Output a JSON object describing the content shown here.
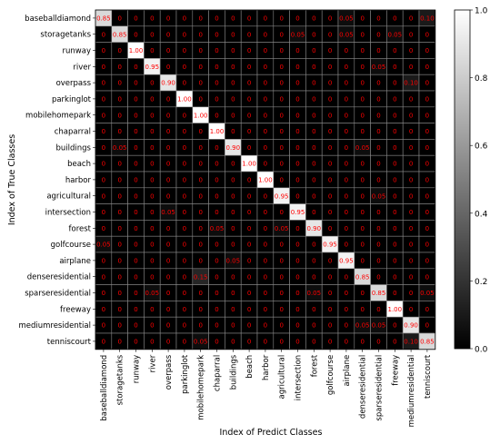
{
  "chart_data": {
    "type": "heatmap",
    "xlabel": "Index of Predict Classes",
    "ylabel": "Index of True Classes",
    "classes": [
      "baseballdiamond",
      "storagetanks",
      "runway",
      "river",
      "overpass",
      "parkinglot",
      "mobilehomepark",
      "chaparral",
      "buildings",
      "beach",
      "harbor",
      "agricultural",
      "intersection",
      "forest",
      "golfcourse",
      "airplane",
      "denseresidential",
      "sparseresidential",
      "freeway",
      "mediumresidential",
      "tenniscourt"
    ],
    "matrix": [
      [
        0.85,
        0,
        0,
        0,
        0,
        0,
        0,
        0,
        0,
        0,
        0,
        0,
        0,
        0,
        0,
        0.05,
        0,
        0,
        0,
        0,
        0.1
      ],
      [
        0,
        0.85,
        0,
        0,
        0,
        0,
        0,
        0,
        0,
        0,
        0,
        0,
        0.05,
        0,
        0,
        0.05,
        0,
        0,
        0.05,
        0,
        0
      ],
      [
        0,
        0,
        1.0,
        0,
        0,
        0,
        0,
        0,
        0,
        0,
        0,
        0,
        0,
        0,
        0,
        0,
        0,
        0,
        0,
        0,
        0
      ],
      [
        0,
        0,
        0,
        0.95,
        0,
        0,
        0,
        0,
        0,
        0,
        0,
        0,
        0,
        0,
        0,
        0,
        0,
        0.05,
        0,
        0,
        0
      ],
      [
        0,
        0,
        0,
        0,
        0.9,
        0,
        0,
        0,
        0,
        0,
        0,
        0,
        0,
        0,
        0,
        0,
        0,
        0,
        0,
        0.1,
        0
      ],
      [
        0,
        0,
        0,
        0,
        0,
        1.0,
        0,
        0,
        0,
        0,
        0,
        0,
        0,
        0,
        0,
        0,
        0,
        0,
        0,
        0,
        0
      ],
      [
        0,
        0,
        0,
        0,
        0,
        0,
        1.0,
        0,
        0,
        0,
        0,
        0,
        0,
        0,
        0,
        0,
        0,
        0,
        0,
        0,
        0
      ],
      [
        0,
        0,
        0,
        0,
        0,
        0,
        0,
        1.0,
        0,
        0,
        0,
        0,
        0,
        0,
        0,
        0,
        0,
        0,
        0,
        0,
        0
      ],
      [
        0,
        0.05,
        0,
        0,
        0,
        0,
        0,
        0,
        0.9,
        0,
        0,
        0,
        0,
        0,
        0,
        0,
        0.05,
        0,
        0,
        0,
        0
      ],
      [
        0,
        0,
        0,
        0,
        0,
        0,
        0,
        0,
        0,
        1.0,
        0,
        0,
        0,
        0,
        0,
        0,
        0,
        0,
        0,
        0,
        0
      ],
      [
        0,
        0,
        0,
        0,
        0,
        0,
        0,
        0,
        0,
        0,
        1.0,
        0,
        0,
        0,
        0,
        0,
        0,
        0,
        0,
        0,
        0
      ],
      [
        0,
        0,
        0,
        0,
        0,
        0,
        0,
        0,
        0,
        0,
        0,
        0.95,
        0,
        0,
        0,
        0,
        0,
        0.05,
        0,
        0,
        0
      ],
      [
        0,
        0,
        0,
        0,
        0.05,
        0,
        0,
        0,
        0,
        0,
        0,
        0,
        0.95,
        0,
        0,
        0,
        0,
        0,
        0,
        0,
        0
      ],
      [
        0,
        0,
        0,
        0,
        0,
        0,
        0,
        0.05,
        0,
        0,
        0,
        0.05,
        0,
        0.9,
        0,
        0,
        0,
        0,
        0,
        0,
        0
      ],
      [
        0.05,
        0,
        0,
        0,
        0,
        0,
        0,
        0,
        0,
        0,
        0,
        0,
        0,
        0,
        0.95,
        0,
        0,
        0,
        0,
        0,
        0
      ],
      [
        0,
        0,
        0,
        0,
        0,
        0,
        0,
        0,
        0.05,
        0,
        0,
        0,
        0,
        0,
        0,
        0.95,
        0,
        0,
        0,
        0,
        0
      ],
      [
        0,
        0,
        0,
        0,
        0,
        0,
        0.15,
        0,
        0,
        0,
        0,
        0,
        0,
        0,
        0,
        0,
        0.85,
        0,
        0,
        0,
        0
      ],
      [
        0,
        0,
        0,
        0.05,
        0,
        0,
        0,
        0,
        0,
        0,
        0,
        0,
        0,
        0.05,
        0,
        0,
        0,
        0.85,
        0,
        0,
        0.05
      ],
      [
        0,
        0,
        0,
        0,
        0,
        0,
        0,
        0,
        0,
        0,
        0,
        0,
        0,
        0,
        0,
        0,
        0,
        0,
        1.0,
        0,
        0
      ],
      [
        0,
        0,
        0,
        0,
        0,
        0,
        0,
        0,
        0,
        0,
        0,
        0,
        0,
        0,
        0,
        0,
        0.05,
        0.05,
        0,
        0.9,
        0
      ],
      [
        0,
        0,
        0,
        0,
        0,
        0,
        0.05,
        0,
        0,
        0,
        0,
        0,
        0,
        0,
        0,
        0,
        0,
        0,
        0,
        0.1,
        0.85
      ]
    ],
    "colorbar": {
      "min": 0.0,
      "max": 1.0,
      "ticks": [
        "0.0",
        "0.2",
        "0.4",
        "0.6",
        "0.8",
        "1.0"
      ]
    },
    "colormap": "gray",
    "annotation_color": "#ff0000",
    "grid": true,
    "grid_color": "#888888"
  }
}
